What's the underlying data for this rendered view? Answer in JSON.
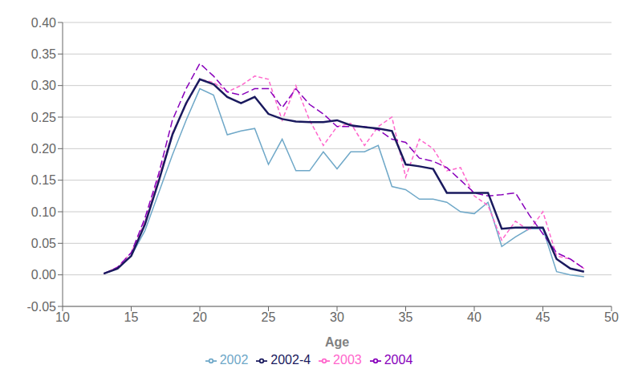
{
  "chart_data": {
    "type": "line",
    "xlabel": "Age",
    "x": [
      13,
      14,
      15,
      16,
      17,
      18,
      19,
      20,
      21,
      22,
      23,
      24,
      25,
      26,
      27,
      28,
      29,
      30,
      31,
      32,
      33,
      34,
      35,
      36,
      37,
      38,
      39,
      40,
      41,
      42,
      43,
      44,
      45,
      46,
      47,
      48
    ],
    "series": [
      {
        "name": "2002",
        "color": "#6fa8c8",
        "line_style": "solid",
        "values": [
          0.002,
          0.01,
          0.03,
          0.07,
          0.13,
          0.19,
          0.245,
          0.295,
          0.285,
          0.222,
          0.228,
          0.232,
          0.175,
          0.215,
          0.165,
          0.165,
          0.195,
          0.168,
          0.195,
          0.195,
          0.205,
          0.14,
          0.135,
          0.12,
          0.12,
          0.115,
          0.1,
          0.097,
          0.115,
          0.045,
          0.06,
          0.073,
          0.073,
          0.005,
          0.0,
          -0.003
        ]
      },
      {
        "name": "2003",
        "color": "#ff66cc",
        "line_style": "dashed",
        "values": [
          0.002,
          0.012,
          0.035,
          0.085,
          0.155,
          0.225,
          0.27,
          0.31,
          0.305,
          0.29,
          0.3,
          0.315,
          0.31,
          0.245,
          0.3,
          0.245,
          0.205,
          0.235,
          0.24,
          0.205,
          0.235,
          0.25,
          0.155,
          0.215,
          0.2,
          0.165,
          0.17,
          0.125,
          0.11,
          0.055,
          0.085,
          0.07,
          0.1,
          0.03,
          0.025,
          0.01
        ]
      },
      {
        "name": "2004",
        "color": "#8800bb",
        "line_style": "longdash",
        "values": [
          0.002,
          0.012,
          0.035,
          0.09,
          0.16,
          0.245,
          0.295,
          0.335,
          0.315,
          0.29,
          0.285,
          0.295,
          0.295,
          0.265,
          0.295,
          0.27,
          0.255,
          0.235,
          0.235,
          0.235,
          0.23,
          0.215,
          0.21,
          0.185,
          0.18,
          0.17,
          0.15,
          0.13,
          0.125,
          0.127,
          0.13,
          0.095,
          0.065,
          0.035,
          0.025,
          0.01
        ]
      },
      {
        "name": "2002-4",
        "color": "#1a1a5e",
        "line_style": "solid",
        "values": [
          0.002,
          0.01,
          0.03,
          0.08,
          0.148,
          0.222,
          0.272,
          0.31,
          0.302,
          0.282,
          0.272,
          0.282,
          0.255,
          0.247,
          0.243,
          0.242,
          0.242,
          0.245,
          0.237,
          0.234,
          0.232,
          0.228,
          0.175,
          0.172,
          0.168,
          0.13,
          0.13,
          0.13,
          0.13,
          0.073,
          0.075,
          0.075,
          0.075,
          0.025,
          0.01,
          0.005
        ]
      }
    ],
    "xlim": [
      10,
      50
    ],
    "ylim": [
      -0.05,
      0.4
    ],
    "xticks": [
      10,
      15,
      20,
      25,
      30,
      35,
      40,
      45,
      50
    ],
    "yticks": [
      -0.05,
      {
        "value": 0.0,
        "label": "0.00"
      },
      0.05,
      {
        "value": 0.1,
        "label": "0.10"
      },
      0.15,
      {
        "value": 0.2,
        "label": "0.20"
      },
      0.25,
      {
        "value": 0.3,
        "label": "0.30"
      },
      0.35,
      {
        "value": 0.4,
        "label": "0.40"
      }
    ],
    "grid": true
  }
}
